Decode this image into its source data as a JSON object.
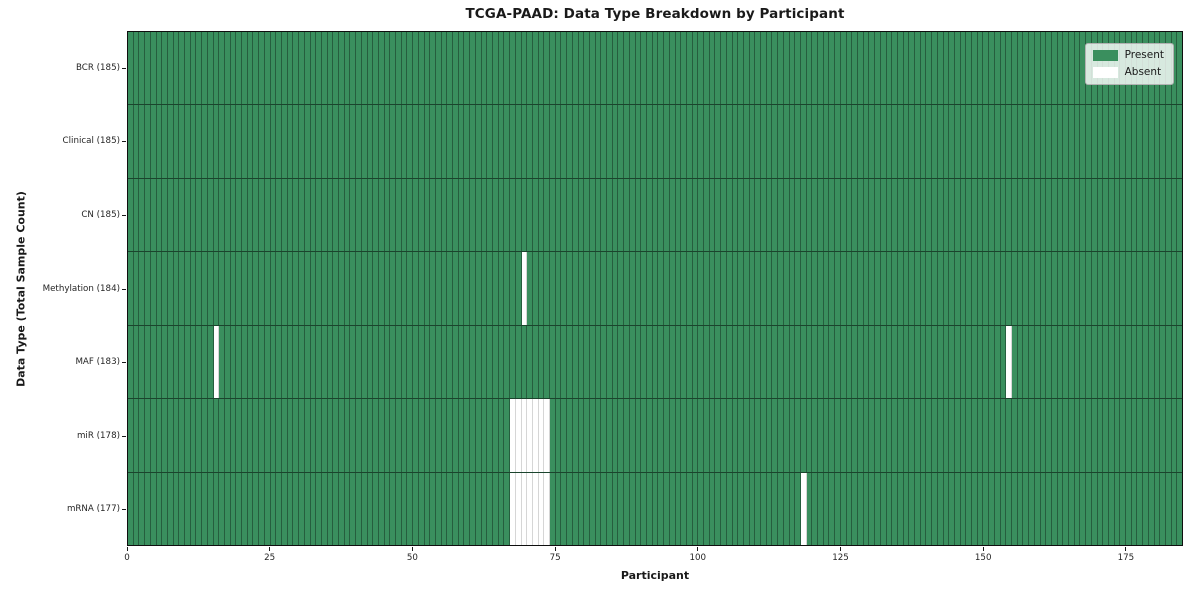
{
  "chart_data": {
    "type": "heatmap",
    "title": "TCGA-PAAD: Data Type Breakdown by Participant",
    "xlabel": "Participant",
    "ylabel": "Data Type (Total Sample Count)",
    "n_participants": 185,
    "x_range": [
      0,
      185
    ],
    "x_ticks": [
      "0",
      "25",
      "50",
      "75",
      "100",
      "125",
      "150",
      "175"
    ],
    "x_tick_values": [
      0,
      25,
      50,
      75,
      100,
      125,
      150,
      175
    ],
    "legend_position": "upper right",
    "legend": [
      {
        "label": "Present",
        "color": "#3a8f5e"
      },
      {
        "label": "Absent",
        "color": "#ffffff"
      }
    ],
    "colors": {
      "present": "#3a8f5e",
      "absent": "#ffffff"
    },
    "rows": [
      {
        "label": "BCR (185)",
        "name": "BCR",
        "total": 185,
        "absent_participants": []
      },
      {
        "label": "Clinical (185)",
        "name": "Clinical",
        "total": 185,
        "absent_participants": []
      },
      {
        "label": "CN (185)",
        "name": "CN",
        "total": 185,
        "absent_participants": []
      },
      {
        "label": "Methylation (184)",
        "name": "Methylation",
        "total": 184,
        "absent_participants": [
          69
        ]
      },
      {
        "label": "MAF (183)",
        "name": "MAF",
        "total": 183,
        "absent_participants": [
          15,
          154
        ]
      },
      {
        "label": "miR (178)",
        "name": "miR",
        "total": 178,
        "absent_participants": [
          67,
          68,
          69,
          70,
          71,
          72,
          73
        ]
      },
      {
        "label": "mRNA (177)",
        "name": "mRNA",
        "total": 177,
        "absent_participants": [
          67,
          68,
          69,
          70,
          71,
          72,
          73,
          118
        ]
      }
    ]
  }
}
